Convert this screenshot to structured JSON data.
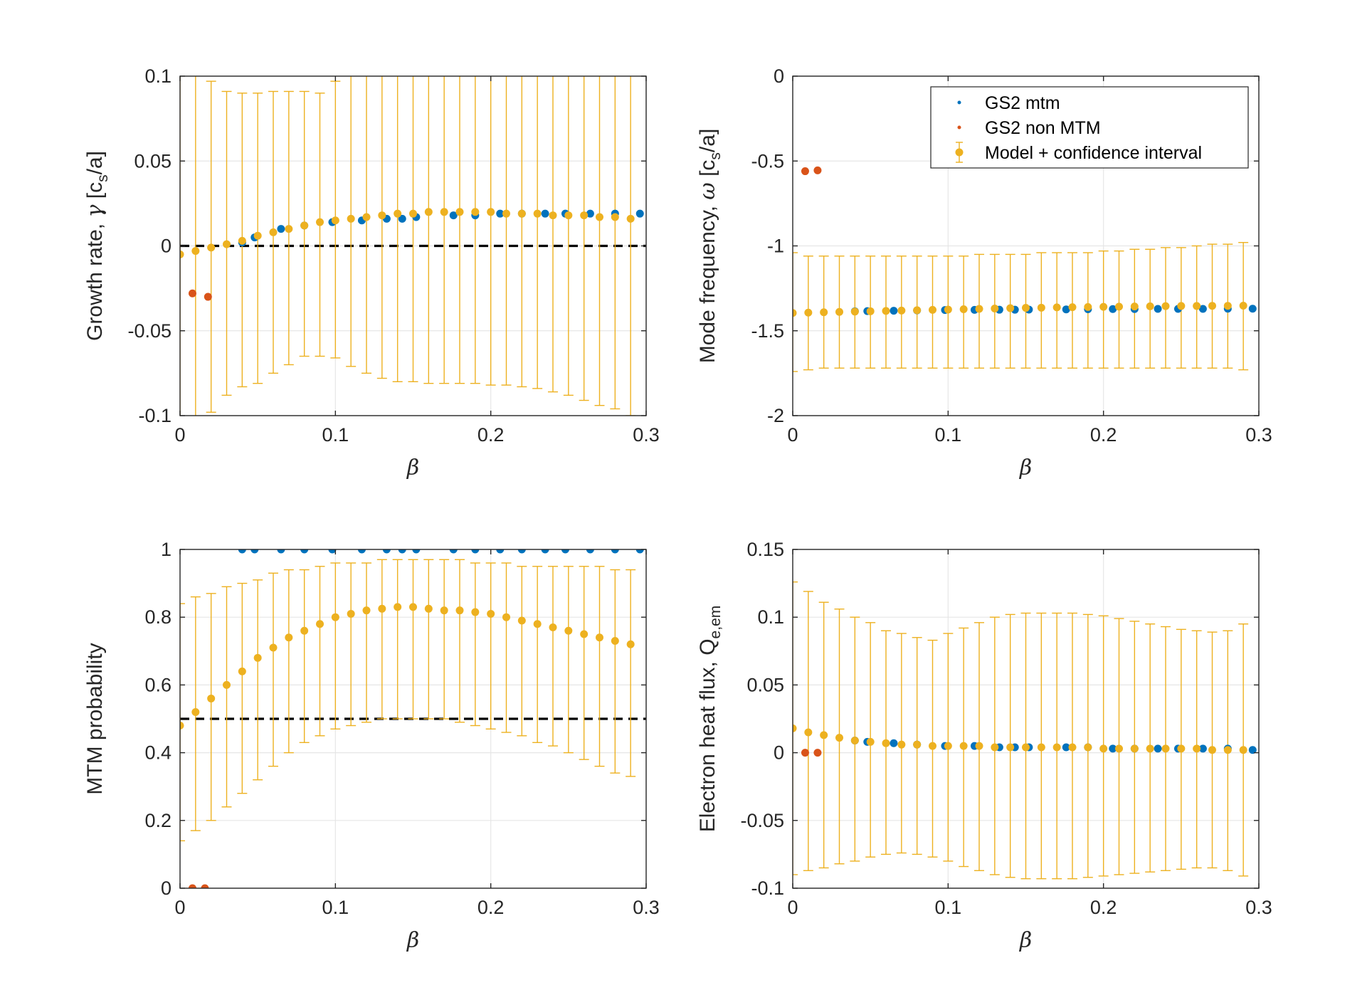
{
  "colors": {
    "gs2_mtm": "#0072BD",
    "gs2_non_mtm": "#D95319",
    "model": "#EDB120",
    "threshold": "#000000",
    "axes": "#262626",
    "grid": "#e6e6e6"
  },
  "legend": {
    "gs2_mtm": "GS2 mtm",
    "gs2_non_mtm": "GS2 non MTM",
    "model": "Model + confidence interval"
  },
  "chart_data": [
    {
      "id": "growth",
      "type": "scatter",
      "ylabel": "Growth rate, γ [c_s/a]",
      "ylabel_parts": [
        "Growth rate, ",
        "γ",
        " [c",
        "s",
        "/a]"
      ],
      "xlabel": "β",
      "xlim": [
        0,
        0.3
      ],
      "ylim": [
        -0.1,
        0.1
      ],
      "xticks": [
        0,
        0.1,
        0.2,
        0.3
      ],
      "xtick_labels": [
        "0",
        "0.1",
        "0.2",
        "0.3"
      ],
      "yticks": [
        -0.1,
        -0.05,
        0,
        0.05,
        0.1
      ],
      "ytick_labels": [
        "-0.1",
        "-0.05",
        "0",
        "0.05",
        "0.1"
      ],
      "threshold": 0,
      "legend": false,
      "mtm_x": [
        0.04,
        0.048,
        0.065,
        0.08,
        0.098,
        0.117,
        0.133,
        0.143,
        0.152,
        0.176,
        0.19,
        0.206,
        0.22,
        0.235,
        0.248,
        0.264,
        0.28,
        0.296
      ],
      "mtm_y": [
        0.002,
        0.005,
        0.01,
        0.012,
        0.014,
        0.015,
        0.016,
        0.016,
        0.017,
        0.018,
        0.018,
        0.019,
        0.019,
        0.019,
        0.019,
        0.019,
        0.019,
        0.019
      ],
      "non_x": [
        0.008,
        0.018
      ],
      "non_y": [
        -0.028,
        -0.03
      ],
      "model_x": [
        0,
        0.01,
        0.02,
        0.03,
        0.04,
        0.05,
        0.06,
        0.07,
        0.08,
        0.09,
        0.1,
        0.11,
        0.12,
        0.13,
        0.14,
        0.15,
        0.16,
        0.17,
        0.18,
        0.19,
        0.2,
        0.21,
        0.22,
        0.23,
        0.24,
        0.25,
        0.26,
        0.27,
        0.28,
        0.29
      ],
      "model_y": [
        -0.005,
        -0.003,
        -0.001,
        0.001,
        0.003,
        0.006,
        0.008,
        0.01,
        0.012,
        0.014,
        0.015,
        0.016,
        0.017,
        0.018,
        0.019,
        0.019,
        0.02,
        0.02,
        0.02,
        0.02,
        0.02,
        0.019,
        0.019,
        0.019,
        0.018,
        0.018,
        0.018,
        0.017,
        0.017,
        0.016
      ],
      "model_low": [
        -0.11,
        -0.105,
        -0.098,
        -0.088,
        -0.083,
        -0.081,
        -0.075,
        -0.07,
        -0.065,
        -0.065,
        -0.066,
        -0.071,
        -0.075,
        -0.078,
        -0.08,
        -0.08,
        -0.081,
        -0.081,
        -0.081,
        -0.081,
        -0.082,
        -0.082,
        -0.083,
        -0.084,
        -0.086,
        -0.088,
        -0.091,
        -0.094,
        -0.096,
        -0.1
      ],
      "model_high": [
        0.11,
        0.105,
        0.097,
        0.091,
        0.09,
        0.09,
        0.091,
        0.091,
        0.091,
        0.09,
        0.097,
        0.102,
        0.104,
        0.105,
        0.106,
        0.107,
        0.108,
        0.109,
        0.11,
        0.11,
        0.11,
        0.11,
        0.11,
        0.11,
        0.11,
        0.11,
        0.11,
        0.11,
        0.11,
        0.11
      ]
    },
    {
      "id": "frequency",
      "type": "scatter",
      "ylabel": "Mode frequency, ω [c_s/a]",
      "ylabel_parts": [
        "Mode frequency, ",
        "ω",
        " [c",
        "s",
        "/a]"
      ],
      "xlabel": "β",
      "xlim": [
        0,
        0.3
      ],
      "ylim": [
        -2,
        0
      ],
      "xticks": [
        0,
        0.1,
        0.2,
        0.3
      ],
      "xtick_labels": [
        "0",
        "0.1",
        "0.2",
        "0.3"
      ],
      "yticks": [
        -2,
        -1.5,
        -1,
        -0.5,
        0
      ],
      "ytick_labels": [
        "-2",
        "-1.5",
        "-1",
        "-0.5",
        "0"
      ],
      "threshold": null,
      "legend": true,
      "mtm_x": [
        0.04,
        0.048,
        0.065,
        0.08,
        0.098,
        0.117,
        0.133,
        0.143,
        0.152,
        0.176,
        0.19,
        0.206,
        0.22,
        0.235,
        0.248,
        0.264,
        0.28,
        0.296
      ],
      "mtm_y": [
        -1.385,
        -1.384,
        -1.382,
        -1.38,
        -1.378,
        -1.377,
        -1.376,
        -1.376,
        -1.375,
        -1.374,
        -1.373,
        -1.372,
        -1.372,
        -1.371,
        -1.371,
        -1.371,
        -1.37,
        -1.37
      ],
      "non_x": [
        0.008,
        0.016
      ],
      "non_y": [
        -0.56,
        -0.555
      ],
      "model_x": [
        0,
        0.01,
        0.02,
        0.03,
        0.04,
        0.05,
        0.06,
        0.07,
        0.08,
        0.09,
        0.1,
        0.11,
        0.12,
        0.13,
        0.14,
        0.15,
        0.16,
        0.17,
        0.18,
        0.19,
        0.2,
        0.21,
        0.22,
        0.23,
        0.24,
        0.25,
        0.26,
        0.27,
        0.28,
        0.29
      ],
      "model_y": [
        -1.395,
        -1.393,
        -1.391,
        -1.389,
        -1.387,
        -1.385,
        -1.383,
        -1.381,
        -1.379,
        -1.377,
        -1.375,
        -1.373,
        -1.371,
        -1.369,
        -1.367,
        -1.365,
        -1.364,
        -1.362,
        -1.361,
        -1.36,
        -1.359,
        -1.358,
        -1.357,
        -1.356,
        -1.355,
        -1.354,
        -1.354,
        -1.353,
        -1.353,
        -1.352
      ],
      "model_low": [
        -1.74,
        -1.73,
        -1.72,
        -1.72,
        -1.72,
        -1.72,
        -1.72,
        -1.72,
        -1.72,
        -1.72,
        -1.72,
        -1.72,
        -1.72,
        -1.72,
        -1.72,
        -1.72,
        -1.72,
        -1.72,
        -1.72,
        -1.72,
        -1.72,
        -1.72,
        -1.72,
        -1.72,
        -1.72,
        -1.72,
        -1.72,
        -1.72,
        -1.72,
        -1.73
      ],
      "model_high": [
        -1.04,
        -1.06,
        -1.06,
        -1.06,
        -1.06,
        -1.06,
        -1.06,
        -1.06,
        -1.06,
        -1.06,
        -1.06,
        -1.06,
        -1.05,
        -1.05,
        -1.05,
        -1.05,
        -1.04,
        -1.04,
        -1.04,
        -1.04,
        -1.03,
        -1.03,
        -1.02,
        -1.02,
        -1.01,
        -1.01,
        -1.0,
        -0.99,
        -0.99,
        -0.98
      ]
    },
    {
      "id": "probability",
      "type": "scatter",
      "ylabel": "MTM probability",
      "ylabel_parts": [
        "MTM probability"
      ],
      "xlabel": "β",
      "xlim": [
        0,
        0.3
      ],
      "ylim": [
        0,
        1
      ],
      "xticks": [
        0,
        0.1,
        0.2,
        0.3
      ],
      "xtick_labels": [
        "0",
        "0.1",
        "0.2",
        "0.3"
      ],
      "yticks": [
        0,
        0.2,
        0.4,
        0.6,
        0.8,
        1
      ],
      "ytick_labels": [
        "0",
        "0.2",
        "0.4",
        "0.6",
        "0.8",
        "1"
      ],
      "threshold": 0.5,
      "legend": false,
      "mtm_x": [
        0.04,
        0.048,
        0.065,
        0.08,
        0.098,
        0.117,
        0.133,
        0.143,
        0.152,
        0.176,
        0.19,
        0.206,
        0.22,
        0.235,
        0.248,
        0.264,
        0.28,
        0.296
      ],
      "mtm_y": [
        1,
        1,
        1,
        1,
        1,
        1,
        1,
        1,
        1,
        1,
        1,
        1,
        1,
        1,
        1,
        1,
        1,
        1
      ],
      "non_x": [
        0.008,
        0.016
      ],
      "non_y": [
        0,
        0
      ],
      "model_x": [
        0,
        0.01,
        0.02,
        0.03,
        0.04,
        0.05,
        0.06,
        0.07,
        0.08,
        0.09,
        0.1,
        0.11,
        0.12,
        0.13,
        0.14,
        0.15,
        0.16,
        0.17,
        0.18,
        0.19,
        0.2,
        0.21,
        0.22,
        0.23,
        0.24,
        0.25,
        0.26,
        0.27,
        0.28,
        0.29
      ],
      "model_y": [
        0.48,
        0.52,
        0.56,
        0.6,
        0.64,
        0.68,
        0.71,
        0.74,
        0.76,
        0.78,
        0.8,
        0.81,
        0.82,
        0.825,
        0.83,
        0.83,
        0.825,
        0.82,
        0.82,
        0.815,
        0.81,
        0.8,
        0.79,
        0.78,
        0.77,
        0.76,
        0.75,
        0.74,
        0.73,
        0.72
      ],
      "model_low": [
        0.14,
        0.17,
        0.2,
        0.24,
        0.28,
        0.32,
        0.36,
        0.4,
        0.43,
        0.45,
        0.47,
        0.48,
        0.49,
        0.5,
        0.5,
        0.5,
        0.5,
        0.5,
        0.49,
        0.48,
        0.47,
        0.46,
        0.45,
        0.43,
        0.42,
        0.4,
        0.38,
        0.36,
        0.34,
        0.33
      ],
      "model_high": [
        0.84,
        0.86,
        0.87,
        0.89,
        0.9,
        0.91,
        0.93,
        0.94,
        0.94,
        0.95,
        0.96,
        0.96,
        0.96,
        0.97,
        0.97,
        0.97,
        0.97,
        0.97,
        0.97,
        0.96,
        0.96,
        0.96,
        0.95,
        0.95,
        0.95,
        0.95,
        0.95,
        0.95,
        0.94,
        0.94
      ]
    },
    {
      "id": "heatflux",
      "type": "scatter",
      "ylabel": "Electron heat flux, Q_e,em",
      "ylabel_parts": [
        "Electron heat flux, Q",
        "e,em"
      ],
      "xlabel": "β",
      "xlim": [
        0,
        0.3
      ],
      "ylim": [
        -0.1,
        0.15
      ],
      "xticks": [
        0,
        0.1,
        0.2,
        0.3
      ],
      "xtick_labels": [
        "0",
        "0.1",
        "0.2",
        "0.3"
      ],
      "yticks": [
        -0.1,
        -0.05,
        0,
        0.05,
        0.1,
        0.15
      ],
      "ytick_labels": [
        "-0.1",
        "-0.05",
        "0",
        "0.05",
        "0.1",
        "0.15"
      ],
      "threshold": null,
      "legend": false,
      "mtm_x": [
        0.04,
        0.048,
        0.065,
        0.08,
        0.098,
        0.117,
        0.133,
        0.143,
        0.152,
        0.176,
        0.19,
        0.206,
        0.22,
        0.235,
        0.248,
        0.264,
        0.28,
        0.296
      ],
      "mtm_y": [
        0.009,
        0.008,
        0.007,
        0.006,
        0.005,
        0.005,
        0.004,
        0.004,
        0.004,
        0.004,
        0.004,
        0.003,
        0.003,
        0.003,
        0.003,
        0.003,
        0.003,
        0.002
      ],
      "non_x": [
        0.008,
        0.016
      ],
      "non_y": [
        0.0,
        0.0
      ],
      "model_x": [
        0,
        0.01,
        0.02,
        0.03,
        0.04,
        0.05,
        0.06,
        0.07,
        0.08,
        0.09,
        0.1,
        0.11,
        0.12,
        0.13,
        0.14,
        0.15,
        0.16,
        0.17,
        0.18,
        0.19,
        0.2,
        0.21,
        0.22,
        0.23,
        0.24,
        0.25,
        0.26,
        0.27,
        0.28,
        0.29
      ],
      "model_y": [
        0.018,
        0.015,
        0.013,
        0.011,
        0.009,
        0.008,
        0.007,
        0.006,
        0.006,
        0.005,
        0.005,
        0.005,
        0.005,
        0.004,
        0.004,
        0.004,
        0.004,
        0.004,
        0.004,
        0.004,
        0.003,
        0.003,
        0.003,
        0.003,
        0.003,
        0.003,
        0.003,
        0.002,
        0.002,
        0.002
      ],
      "model_low": [
        -0.09,
        -0.087,
        -0.085,
        -0.082,
        -0.08,
        -0.077,
        -0.075,
        -0.074,
        -0.075,
        -0.077,
        -0.08,
        -0.084,
        -0.087,
        -0.09,
        -0.092,
        -0.093,
        -0.093,
        -0.093,
        -0.093,
        -0.092,
        -0.091,
        -0.09,
        -0.089,
        -0.088,
        -0.087,
        -0.086,
        -0.085,
        -0.085,
        -0.087,
        -0.091
      ],
      "model_high": [
        0.126,
        0.119,
        0.111,
        0.106,
        0.1,
        0.096,
        0.09,
        0.088,
        0.085,
        0.083,
        0.088,
        0.092,
        0.096,
        0.1,
        0.102,
        0.103,
        0.103,
        0.103,
        0.103,
        0.102,
        0.101,
        0.099,
        0.097,
        0.095,
        0.093,
        0.091,
        0.09,
        0.089,
        0.09,
        0.095
      ]
    }
  ]
}
